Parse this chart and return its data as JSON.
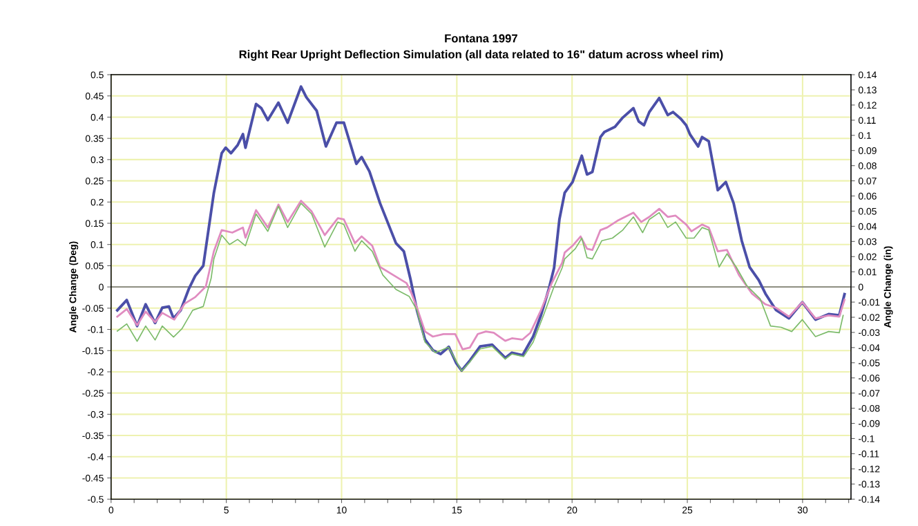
{
  "chart_data": {
    "type": "line",
    "title": "Fontana 1997",
    "subtitle": "Right Rear Upright Deflection Simulation (all data related to 16\" datum across wheel rim)",
    "ylabel": "Angle Change (Deg)",
    "y2label": "Angle Change (in)",
    "xlim": [
      0,
      32.1
    ],
    "ylim": [
      -0.5,
      0.5
    ],
    "y2lim": [
      -0.14,
      0.14
    ],
    "xticks": [
      0,
      {
        "value": 1,
        "label": null
      },
      {
        "value": 2,
        "label": null
      },
      {
        "value": 3,
        "label": null
      },
      {
        "value": 4,
        "label": null
      },
      5,
      {
        "value": 6,
        "label": null
      },
      {
        "value": 7,
        "label": null
      },
      {
        "value": 8,
        "label": null
      },
      {
        "value": 9,
        "label": null
      },
      10,
      {
        "value": 11,
        "label": null
      },
      {
        "value": 12,
        "label": null
      },
      {
        "value": 13,
        "label": null
      },
      {
        "value": 14,
        "label": null
      },
      15,
      {
        "value": 16,
        "label": null
      },
      {
        "value": 17,
        "label": null
      },
      {
        "value": 18,
        "label": null
      },
      {
        "value": 19,
        "label": null
      },
      20,
      {
        "value": 21,
        "label": null
      },
      {
        "value": 22,
        "label": null
      },
      {
        "value": 23,
        "label": null
      },
      {
        "value": 24,
        "label": null
      },
      25,
      {
        "value": 26,
        "label": null
      },
      {
        "value": 27,
        "label": null
      },
      {
        "value": 28,
        "label": null
      },
      {
        "value": 29,
        "label": null
      },
      30,
      {
        "value": 31,
        "label": null
      },
      {
        "value": 32,
        "label": null
      }
    ],
    "yticks": [
      -0.5,
      -0.45,
      -0.4,
      -0.35,
      -0.3,
      -0.25,
      -0.2,
      -0.15,
      -0.1,
      -0.05,
      0,
      0.05,
      0.1,
      0.15,
      0.2,
      0.25,
      0.3,
      0.35,
      0.4,
      0.45,
      0.5
    ],
    "y2ticks": [
      -0.14,
      -0.13,
      -0.12,
      -0.11,
      -0.1,
      -0.09,
      -0.08,
      -0.07,
      -0.06,
      -0.05,
      -0.04,
      -0.03,
      -0.02,
      -0.01,
      0,
      0.01,
      0.02,
      0.03,
      0.04,
      0.05,
      0.06,
      0.07,
      0.08,
      0.09,
      0.1,
      0.11,
      0.12,
      0.13,
      0.14
    ],
    "grid": true,
    "marker": "none",
    "line_style": "solid",
    "ref_lines": [
      {
        "axis": "y",
        "value": 0,
        "color": "#808080"
      }
    ],
    "series": [
      {
        "color": "#4b4fa8",
        "x": [
          0.27,
          0.68,
          1.13,
          1.5,
          1.91,
          2.22,
          2.51,
          2.71,
          3.02,
          3.37,
          3.65,
          4.0,
          4.46,
          4.8,
          4.97,
          5.2,
          5.49,
          5.72,
          5.83,
          6.29,
          6.52,
          6.8,
          7.26,
          7.66,
          8.24,
          8.47,
          8.92,
          9.32,
          9.78,
          10.1,
          10.64,
          10.87,
          11.21,
          11.67,
          12.36,
          12.7,
          12.99,
          13.27,
          13.62,
          13.96,
          14.3,
          14.65,
          14.98,
          15.21,
          15.56,
          16.01,
          16.53,
          17.1,
          17.39,
          17.85,
          18.31,
          18.65,
          18.99,
          19.22,
          19.45,
          19.68,
          20.02,
          20.42,
          20.65,
          20.88,
          21.23,
          21.4,
          21.86,
          22.2,
          22.66,
          22.89,
          23.12,
          23.35,
          23.78,
          24.15,
          24.38,
          24.72,
          24.95,
          25.12,
          25.47,
          25.64,
          25.93,
          26.32,
          26.67,
          27.01,
          27.36,
          27.7,
          28.1,
          28.39,
          28.84,
          29.41,
          29.99,
          30.56,
          31.13,
          31.59,
          31.82
        ],
        "values": [
          -0.055,
          -0.031,
          -0.092,
          -0.041,
          -0.085,
          -0.049,
          -0.046,
          -0.074,
          -0.055,
          -0.005,
          0.026,
          0.05,
          0.222,
          0.315,
          0.328,
          0.315,
          0.334,
          0.36,
          0.328,
          0.431,
          0.421,
          0.393,
          0.434,
          0.387,
          0.472,
          0.447,
          0.415,
          0.331,
          0.387,
          0.387,
          0.29,
          0.306,
          0.272,
          0.197,
          0.103,
          0.084,
          0.018,
          -0.055,
          -0.124,
          -0.149,
          -0.158,
          -0.141,
          -0.18,
          -0.197,
          -0.174,
          -0.14,
          -0.136,
          -0.167,
          -0.155,
          -0.161,
          -0.117,
          -0.067,
          -0.005,
          0.045,
          0.159,
          0.222,
          0.247,
          0.309,
          0.265,
          0.271,
          0.353,
          0.365,
          0.377,
          0.399,
          0.421,
          0.39,
          0.381,
          0.412,
          0.445,
          0.405,
          0.412,
          0.396,
          0.381,
          0.359,
          0.331,
          0.353,
          0.343,
          0.228,
          0.247,
          0.197,
          0.109,
          0.047,
          0.016,
          -0.016,
          -0.054,
          -0.074,
          -0.036,
          -0.077,
          -0.064,
          -0.067,
          -0.017
        ]
      },
      {
        "color": "#e08cc0",
        "x": [
          0.27,
          0.68,
          1.13,
          1.5,
          1.91,
          2.22,
          2.74,
          3.2,
          3.65,
          4.11,
          4.46,
          4.8,
          5.26,
          5.72,
          5.83,
          6.29,
          6.8,
          7.26,
          7.66,
          8.24,
          8.7,
          9.27,
          9.84,
          10.1,
          10.58,
          10.87,
          11.33,
          11.67,
          12.24,
          12.82,
          13.04,
          13.27,
          13.62,
          13.96,
          14.42,
          14.93,
          15.25,
          15.56,
          15.91,
          16.26,
          16.6,
          17.1,
          17.39,
          17.85,
          18.19,
          18.65,
          19.11,
          19.57,
          19.68,
          20.02,
          20.37,
          20.65,
          20.88,
          21.23,
          21.52,
          21.97,
          22.66,
          23.0,
          23.35,
          23.78,
          24.15,
          24.49,
          24.95,
          25.18,
          25.64,
          25.93,
          26.32,
          26.72,
          27.24,
          27.81,
          28.39,
          28.84,
          29.41,
          29.99,
          30.56,
          31.13,
          31.59,
          31.82
        ],
        "values": [
          -0.07,
          -0.052,
          -0.09,
          -0.058,
          -0.083,
          -0.061,
          -0.077,
          -0.039,
          -0.024,
          0.001,
          0.084,
          0.134,
          0.128,
          0.14,
          0.116,
          0.181,
          0.14,
          0.194,
          0.153,
          0.203,
          0.178,
          0.122,
          0.162,
          0.159,
          0.103,
          0.119,
          0.097,
          0.047,
          0.028,
          0.009,
          -0.016,
          -0.049,
          -0.105,
          -0.117,
          -0.111,
          -0.111,
          -0.147,
          -0.143,
          -0.111,
          -0.105,
          -0.108,
          -0.127,
          -0.121,
          -0.124,
          -0.108,
          -0.055,
          0.008,
          0.057,
          0.081,
          0.097,
          0.119,
          0.09,
          0.087,
          0.134,
          0.14,
          0.156,
          0.175,
          0.153,
          0.165,
          0.184,
          0.165,
          0.168,
          0.147,
          0.131,
          0.147,
          0.14,
          0.084,
          0.087,
          0.028,
          -0.016,
          -0.041,
          -0.049,
          -0.07,
          -0.036,
          -0.074,
          -0.067,
          -0.07,
          -0.03
        ]
      },
      {
        "color": "#7cbb6a",
        "x": [
          0.27,
          0.68,
          1.13,
          1.5,
          1.91,
          2.22,
          2.71,
          3.08,
          3.54,
          4.0,
          4.34,
          4.46,
          4.8,
          5.14,
          5.49,
          5.83,
          6.29,
          6.8,
          7.26,
          7.66,
          8.24,
          8.7,
          9.27,
          9.84,
          10.1,
          10.58,
          10.87,
          11.33,
          11.79,
          12.36,
          12.93,
          13.27,
          13.62,
          14.07,
          14.64,
          15.21,
          15.56,
          16.01,
          16.53,
          17.1,
          17.39,
          17.9,
          18.31,
          18.76,
          19.22,
          19.57,
          19.68,
          20.14,
          20.42,
          20.65,
          20.88,
          21.29,
          21.75,
          22.2,
          22.66,
          23.06,
          23.35,
          23.78,
          24.15,
          24.49,
          24.95,
          25.29,
          25.64,
          25.93,
          26.38,
          26.72,
          27.12,
          27.58,
          28.16,
          28.61,
          29.07,
          29.53,
          29.99,
          30.56,
          31.13,
          31.59,
          31.76
        ],
        "values": [
          -0.104,
          -0.087,
          -0.128,
          -0.092,
          -0.125,
          -0.092,
          -0.118,
          -0.098,
          -0.055,
          -0.046,
          0.02,
          0.066,
          0.122,
          0.1,
          0.112,
          0.097,
          0.172,
          0.131,
          0.19,
          0.14,
          0.197,
          0.172,
          0.094,
          0.153,
          0.147,
          0.084,
          0.109,
          0.084,
          0.028,
          -0.006,
          -0.022,
          -0.055,
          -0.13,
          -0.155,
          -0.142,
          -0.198,
          -0.177,
          -0.146,
          -0.14,
          -0.17,
          -0.158,
          -0.164,
          -0.13,
          -0.067,
          0.001,
          0.045,
          0.066,
          0.09,
          0.115,
          0.069,
          0.066,
          0.109,
          0.115,
          0.134,
          0.165,
          0.128,
          0.159,
          0.175,
          0.14,
          0.153,
          0.115,
          0.115,
          0.14,
          0.134,
          0.047,
          0.078,
          0.047,
          0.003,
          -0.028,
          -0.092,
          -0.095,
          -0.105,
          -0.077,
          -0.117,
          -0.105,
          -0.108,
          -0.067
        ]
      }
    ]
  }
}
